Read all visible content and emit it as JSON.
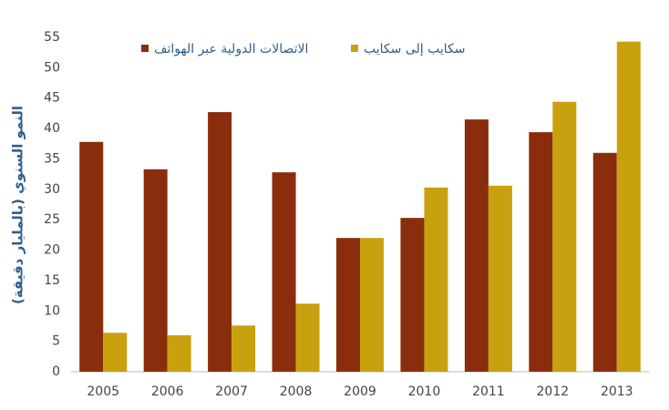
{
  "chart_data": {
    "type": "bar",
    "y_label": "النمو السنوي (بالمليار دقيقة)",
    "categories": [
      "2005",
      "2006",
      "2007",
      "2008",
      "2009",
      "2010",
      "2011",
      "2012",
      "2013"
    ],
    "series": [
      {
        "name": "الاتصالات الدولية عبر الهواتف",
        "color": "#8a2d0c",
        "values": [
          37.8,
          33.3,
          42.7,
          32.8,
          22.0,
          25.3,
          41.5,
          39.4,
          36.0
        ]
      },
      {
        "name": "سكايب إلى سكايب",
        "color": "#c9a10f",
        "values": [
          6.4,
          6.0,
          7.6,
          11.2,
          22.0,
          30.3,
          30.6,
          44.4,
          54.3
        ]
      }
    ],
    "ylim": [
      0,
      55
    ],
    "yticks": [
      0,
      5,
      10,
      15,
      20,
      25,
      30,
      35,
      40,
      45,
      50,
      55
    ],
    "grid": false
  }
}
